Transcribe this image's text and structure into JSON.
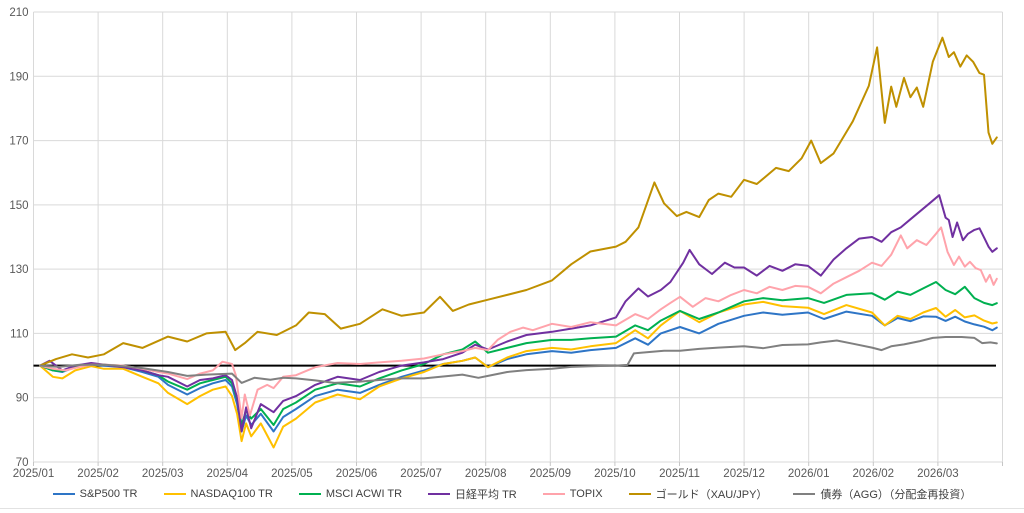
{
  "chart_data": {
    "type": "line",
    "title": "",
    "grid": true,
    "legend_position": "bottom",
    "x_axis": {
      "labels": [
        "2025/01",
        "2025/02",
        "2025/03",
        "2025/04",
        "2025/05",
        "2025/06",
        "2025/07",
        "2025/08",
        "2025/09",
        "2025/10",
        "2025/11",
        "2025/12",
        "2026/01",
        "2026/02",
        "2026/03"
      ],
      "unit": "month"
    },
    "y_axis": {
      "min": 70,
      "max": 210,
      "step": 20,
      "tick_labels": [
        "70",
        "90",
        "110",
        "130",
        "150",
        "170",
        "190",
        "210"
      ]
    },
    "baseline": {
      "value": 100,
      "color": "#000000"
    },
    "style": {
      "grid_color": "#d9d9d9",
      "tick_color": "#c6c6c6",
      "axis_label_color": "#595959",
      "background": "#ffffff"
    },
    "series": [
      {
        "id": "sp500-tr",
        "name": "S&P500 TR",
        "color": "#2E75C6",
        "x": [
          0,
          0.2,
          0.35,
          0.55,
          0.8,
          1,
          1.3,
          1.6,
          1.85,
          2,
          2.3,
          2.5,
          2.7,
          2.9,
          3,
          3.08,
          3.15,
          3.22,
          3.3,
          3.45,
          3.65,
          3.8,
          4,
          4.3,
          4.65,
          5,
          5.3,
          5.65,
          6,
          6.3,
          6.6,
          6.8,
          7,
          7.3,
          7.6,
          8,
          8.3,
          8.6,
          9,
          9.3,
          9.5,
          9.7,
          10,
          10.3,
          10.6,
          11,
          11.3,
          11.6,
          12,
          12.25,
          12.6,
          13,
          13.2,
          13.4,
          13.6,
          13.8,
          14,
          14.15,
          14.3,
          14.45,
          14.6,
          14.75,
          14.88,
          14.95
        ],
        "y": [
          100,
          98.5,
          98,
          99.5,
          100.3,
          100,
          99.5,
          98,
          96.5,
          94,
          91,
          93,
          94.5,
          95.5,
          93.5,
          88,
          79.5,
          84.5,
          81.5,
          85,
          79.5,
          84,
          86.5,
          90.5,
          92.5,
          91.5,
          94,
          96.5,
          98.5,
          100.5,
          101.5,
          102.5,
          99.5,
          102,
          103.5,
          104.5,
          104,
          104.8,
          105.5,
          108.5,
          106.5,
          110,
          112,
          110,
          113,
          115.5,
          116.5,
          115.8,
          116.5,
          114.5,
          116.8,
          115.5,
          112.5,
          114.8,
          113.8,
          115.3,
          115.2,
          113.9,
          115.2,
          113.7,
          112.8,
          112.1,
          111,
          111.8
        ]
      },
      {
        "id": "nasdaq100-tr",
        "name": "NASDAQ100 TR",
        "color": "#FFC000",
        "x": [
          0,
          0.2,
          0.35,
          0.55,
          0.8,
          1,
          1.3,
          1.6,
          1.85,
          2,
          2.3,
          2.5,
          2.7,
          2.9,
          3,
          3.08,
          3.15,
          3.22,
          3.3,
          3.45,
          3.65,
          3.8,
          4,
          4.3,
          4.65,
          5,
          5.3,
          5.65,
          6,
          6.3,
          6.6,
          6.8,
          7,
          7.3,
          7.6,
          8,
          8.3,
          8.6,
          9,
          9.3,
          9.5,
          9.7,
          10,
          10.3,
          10.6,
          11,
          11.3,
          11.6,
          12,
          12.25,
          12.6,
          13,
          13.2,
          13.4,
          13.6,
          13.8,
          14,
          14.15,
          14.3,
          14.45,
          14.6,
          14.75,
          14.88,
          14.95
        ],
        "y": [
          100,
          96.5,
          96,
          98.5,
          99.8,
          99,
          99,
          96.5,
          94.5,
          91.5,
          88,
          90.5,
          92.5,
          93.5,
          90.5,
          85,
          76.5,
          82,
          78,
          82,
          74.5,
          81,
          83.5,
          88.5,
          91,
          89.5,
          93.5,
          96,
          98,
          100.5,
          101.5,
          102.5,
          99.5,
          102.5,
          104.5,
          105.5,
          105,
          106,
          107,
          111,
          108.5,
          112.5,
          117,
          113.5,
          116.5,
          119,
          119.8,
          118.5,
          118,
          116,
          118.8,
          116.5,
          112.5,
          115.5,
          114.5,
          116.5,
          117.9,
          115.2,
          117.3,
          115,
          115.6,
          114,
          113.1,
          113.4
        ]
      },
      {
        "id": "msci-acwi-tr",
        "name": "MSCI ACWI TR",
        "color": "#00B050",
        "x": [
          0,
          0.2,
          0.35,
          0.55,
          0.8,
          1,
          1.3,
          1.6,
          1.85,
          2,
          2.3,
          2.5,
          2.7,
          2.9,
          3,
          3.08,
          3.15,
          3.22,
          3.3,
          3.45,
          3.65,
          3.8,
          4,
          4.3,
          4.65,
          5,
          5.3,
          5.65,
          6,
          6.3,
          6.6,
          6.8,
          7,
          7.3,
          7.6,
          8,
          8.3,
          8.6,
          9,
          9.3,
          9.5,
          9.7,
          10,
          10.3,
          10.6,
          11,
          11.3,
          11.6,
          12,
          12.25,
          12.6,
          13,
          13.2,
          13.4,
          13.6,
          13.8,
          14,
          14.15,
          14.3,
          14.45,
          14.6,
          14.75,
          14.88,
          14.95
        ],
        "y": [
          100,
          98.5,
          98.2,
          99.8,
          100.5,
          100.2,
          100,
          98.5,
          97,
          95,
          92.5,
          94.5,
          95.5,
          96.5,
          94.5,
          89.5,
          81.5,
          86,
          83.5,
          86.5,
          81.5,
          86.5,
          88.5,
          92.5,
          94.5,
          93.5,
          96,
          98.5,
          100.5,
          103.5,
          105,
          107.5,
          104,
          105.5,
          107,
          108,
          108,
          108.5,
          109,
          112.5,
          111,
          114,
          117,
          114.5,
          116.5,
          120,
          121,
          120.3,
          121,
          119.5,
          122,
          122.5,
          120.5,
          123,
          122,
          124,
          126,
          123.5,
          122.2,
          124.5,
          121,
          119.5,
          118.8,
          119.4
        ]
      },
      {
        "id": "nikkei225-tr",
        "name": "日経平均 TR",
        "color": "#7030A0",
        "x": [
          0,
          0.15,
          0.35,
          0.55,
          0.8,
          1,
          1.3,
          1.6,
          1.85,
          2,
          2.3,
          2.5,
          2.7,
          2.9,
          3,
          3.08,
          3.15,
          3.22,
          3.3,
          3.45,
          3.65,
          3.8,
          4,
          4.3,
          4.65,
          5,
          5.3,
          5.65,
          6,
          6.3,
          6.6,
          6.8,
          7,
          7.3,
          7.6,
          8,
          8.3,
          8.6,
          9,
          9.15,
          9.35,
          9.5,
          9.7,
          9.85,
          10.05,
          10.15,
          10.3,
          10.5,
          10.7,
          10.85,
          11,
          11.2,
          11.4,
          11.6,
          11.8,
          12,
          12.2,
          12.4,
          12.6,
          12.8,
          13,
          13.15,
          13.3,
          13.45,
          13.6,
          13.75,
          13.9,
          14.05,
          14.15,
          14.2,
          14.26,
          14.33,
          14.42,
          14.5,
          14.6,
          14.68,
          14.76,
          14.82,
          14.88,
          14.95
        ],
        "y": [
          100,
          101.5,
          98.5,
          100,
          100.8,
          100.3,
          99.5,
          98.5,
          97,
          96.5,
          93.5,
          95.5,
          96,
          97,
          95.5,
          90,
          79.5,
          87,
          80.5,
          88,
          85.5,
          89,
          90.5,
          94,
          96.5,
          95.5,
          98,
          100,
          101,
          102,
          104,
          106.5,
          105,
          107.5,
          109.5,
          110.5,
          111.5,
          112.5,
          115,
          120,
          124,
          121.5,
          123.5,
          126,
          132,
          136,
          131.5,
          128.5,
          132,
          130.5,
          130.5,
          128,
          131,
          129.5,
          131.5,
          131,
          128,
          133,
          136.5,
          139.5,
          140,
          138.5,
          141.5,
          143,
          145.5,
          148,
          150.5,
          153,
          146,
          145.3,
          140,
          144.5,
          139,
          141,
          142.2,
          142.7,
          139.5,
          137,
          135.4,
          136.5
        ]
      },
      {
        "id": "topix",
        "name": "TOPIX",
        "color": "#FFA3AB",
        "x": [
          0,
          0.2,
          0.4,
          0.6,
          0.8,
          1,
          1.3,
          1.6,
          1.85,
          2,
          2.3,
          2.5,
          2.7,
          2.85,
          3,
          3.06,
          3.15,
          3.2,
          3.28,
          3.4,
          3.55,
          3.65,
          3.8,
          4,
          4.3,
          4.65,
          5,
          5.3,
          5.65,
          6,
          6.3,
          6.6,
          6.8,
          7,
          7.15,
          7.35,
          7.55,
          7.7,
          8,
          8.3,
          8.6,
          9,
          9.3,
          9.5,
          9.7,
          9.85,
          10,
          10.2,
          10.4,
          10.6,
          10.8,
          11,
          11.2,
          11.4,
          11.6,
          11.8,
          12,
          12.2,
          12.4,
          12.6,
          12.8,
          13,
          13.15,
          13.3,
          13.45,
          13.55,
          13.7,
          13.85,
          14,
          14.08,
          14.18,
          14.28,
          14.36,
          14.45,
          14.53,
          14.62,
          14.7,
          14.78,
          14.84,
          14.9,
          14.95
        ],
        "y": [
          100,
          99,
          98.5,
          99.5,
          100.3,
          100.3,
          100,
          99,
          98,
          97.5,
          95.8,
          97.5,
          98.5,
          101.2,
          100.5,
          97,
          83.7,
          91,
          84.5,
          92.5,
          94,
          93,
          96.5,
          97,
          99.5,
          100.8,
          100.5,
          101,
          101.5,
          102.2,
          103.5,
          104.5,
          105.5,
          104.8,
          108,
          110.5,
          111.8,
          111,
          113,
          112,
          113.5,
          112.5,
          116,
          114.5,
          117.5,
          119.5,
          121.4,
          118.3,
          121,
          120,
          122,
          123.5,
          122.5,
          124.5,
          123.5,
          124.8,
          124.5,
          122.5,
          125.5,
          127.5,
          129.5,
          132,
          131,
          134.5,
          140.5,
          136.5,
          139,
          137.5,
          141,
          143,
          135.4,
          131.3,
          133.9,
          130.8,
          132.3,
          130.3,
          129.7,
          126.1,
          128.2,
          125.1,
          127
        ]
      },
      {
        "id": "gold-xau-jpy",
        "name": "ゴールド（XAU/JPY）",
        "color": "#BF9000",
        "x": [
          0,
          0.25,
          0.5,
          0.75,
          1,
          1.3,
          1.6,
          2,
          2.3,
          2.6,
          2.9,
          3.05,
          3.2,
          3.4,
          3.7,
          4,
          4.2,
          4.45,
          4.7,
          5,
          5.35,
          5.65,
          6,
          6.25,
          6.45,
          6.7,
          7,
          7.3,
          7.6,
          8,
          8.3,
          8.6,
          9,
          9.15,
          9.35,
          9.6,
          9.75,
          9.95,
          10.1,
          10.3,
          10.45,
          10.6,
          10.8,
          11,
          11.2,
          11.5,
          11.7,
          11.9,
          12.05,
          12.2,
          12.4,
          12.7,
          12.95,
          13.08,
          13.2,
          13.3,
          13.38,
          13.5,
          13.6,
          13.7,
          13.8,
          13.95,
          14.1,
          14.2,
          14.28,
          14.38,
          14.48,
          14.58,
          14.68,
          14.75,
          14.82,
          14.88,
          14.95
        ],
        "y": [
          100,
          102,
          103.5,
          102.5,
          103.5,
          107,
          105.5,
          109,
          107.5,
          110,
          110.5,
          104.8,
          107,
          110.5,
          109.5,
          112.5,
          116.5,
          116,
          111.5,
          113,
          117.5,
          115.5,
          116.5,
          121.4,
          117,
          119,
          120.5,
          122,
          123.5,
          126.5,
          131.5,
          135.5,
          137,
          138.5,
          143,
          157,
          150.5,
          146.5,
          147.8,
          146.2,
          151.5,
          153.5,
          152.5,
          157.8,
          156.5,
          161.5,
          160.5,
          164.5,
          170,
          163,
          166,
          176,
          187,
          199,
          175.5,
          186.8,
          180.5,
          189.5,
          183.5,
          186.5,
          180.5,
          194.5,
          202,
          196,
          197.5,
          193,
          196.5,
          194.5,
          191,
          190.5,
          172.5,
          169,
          171
        ]
      },
      {
        "id": "bond-agg",
        "name": "債券（AGG）（分配金再投資）",
        "color": "#808080",
        "x": [
          0,
          0.3,
          0.6,
          1,
          1.3,
          1.6,
          2,
          2.3,
          2.6,
          3,
          3.15,
          3.35,
          3.6,
          3.8,
          4,
          4.3,
          4.6,
          5,
          5.3,
          5.6,
          6,
          6.3,
          6.6,
          6.85,
          7,
          7.3,
          7.6,
          8,
          8.3,
          8.6,
          9,
          9.18,
          9.28,
          9.5,
          9.75,
          10,
          10.3,
          10.6,
          11,
          11.3,
          11.6,
          12,
          12.2,
          12.45,
          12.7,
          13,
          13.15,
          13.3,
          13.5,
          13.75,
          13.95,
          14.15,
          14.4,
          14.6,
          14.72,
          14.85,
          14.95
        ],
        "y": [
          100,
          99.6,
          100.2,
          100.3,
          99.8,
          99.2,
          98,
          96.8,
          97.2,
          97.5,
          94.6,
          96.2,
          95.6,
          96.2,
          96,
          95.4,
          94.6,
          95,
          95.5,
          96,
          96,
          96.6,
          97.2,
          96.2,
          96.8,
          98,
          98.6,
          99,
          99.6,
          99.8,
          100,
          100.2,
          103.8,
          104.2,
          104.6,
          104.6,
          105.2,
          105.6,
          106,
          105.4,
          106.4,
          106.6,
          107.2,
          107.8,
          106.8,
          105.6,
          104.8,
          106,
          106.6,
          107.6,
          108.6,
          108.9,
          108.9,
          108.6,
          107,
          107.2,
          106.9
        ]
      }
    ]
  }
}
